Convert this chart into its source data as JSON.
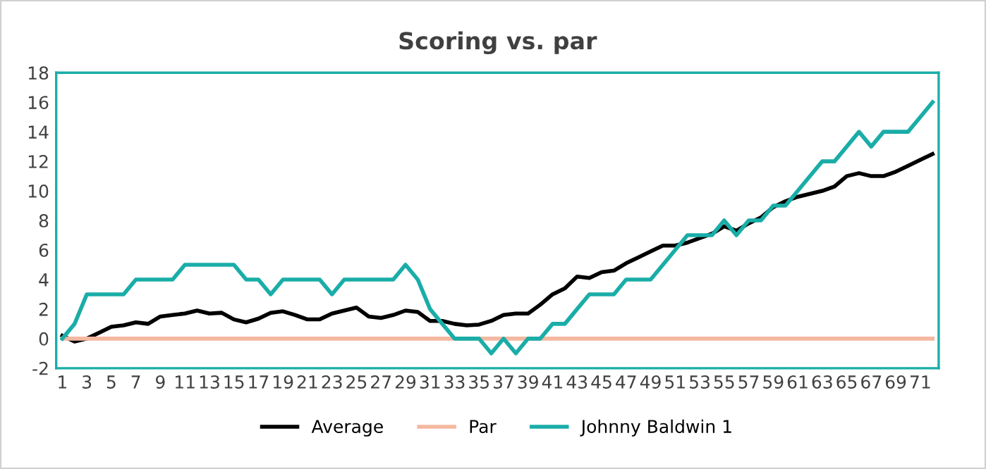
{
  "chart_data": {
    "type": "line",
    "title": "Scoring vs. par",
    "categories": [
      "1",
      null,
      "3",
      null,
      "5",
      null,
      "7",
      null,
      "9",
      null,
      "11",
      null,
      "13",
      null,
      "15",
      null,
      "17",
      null,
      "19",
      null,
      "21",
      null,
      "23",
      null,
      "25",
      null,
      "27",
      null,
      "29",
      null,
      "31",
      null,
      "33",
      null,
      "35",
      null,
      "37",
      null,
      "39",
      null,
      "41",
      null,
      "43",
      null,
      "45",
      null,
      "47",
      null,
      "49",
      null,
      "51",
      null,
      "53",
      null,
      "55",
      null,
      "57",
      null,
      "59",
      null,
      "61",
      null,
      "63",
      null,
      "65",
      null,
      "67",
      null,
      "69",
      null,
      "71",
      null
    ],
    "series": [
      {
        "name": "Average",
        "color": "#000000",
        "values": [
          0.2,
          -0.2,
          0,
          0.4,
          0.8,
          0.9,
          1.1,
          1.0,
          1.5,
          1.6,
          1.7,
          1.9,
          1.7,
          1.75,
          1.3,
          1.1,
          1.35,
          1.75,
          1.85,
          1.6,
          1.3,
          1.3,
          1.7,
          1.9,
          2.1,
          1.5,
          1.4,
          1.6,
          1.9,
          1.8,
          1.2,
          1.2,
          1.0,
          0.9,
          0.95,
          1.2,
          1.6,
          1.7,
          1.7,
          2.3,
          3.0,
          3.4,
          4.2,
          4.1,
          4.5,
          4.6,
          5.1,
          5.5,
          5.9,
          6.3,
          6.3,
          6.5,
          6.8,
          7.1,
          7.6,
          7.3,
          7.8,
          8.2,
          8.9,
          9.3,
          9.6,
          9.8,
          10.0,
          10.3,
          11.0,
          11.2,
          11.0,
          11.0,
          11.3,
          11.7,
          12.1,
          12.5
        ]
      },
      {
        "name": "Par",
        "color": "#f4b8a0",
        "values": [
          0,
          0,
          0,
          0,
          0,
          0,
          0,
          0,
          0,
          0,
          0,
          0,
          0,
          0,
          0,
          0,
          0,
          0,
          0,
          0,
          0,
          0,
          0,
          0,
          0,
          0,
          0,
          0,
          0,
          0,
          0,
          0,
          0,
          0,
          0,
          0,
          0,
          0,
          0,
          0,
          0,
          0,
          0,
          0,
          0,
          0,
          0,
          0,
          0,
          0,
          0,
          0,
          0,
          0,
          0,
          0,
          0,
          0,
          0,
          0,
          0,
          0,
          0,
          0,
          0,
          0,
          0,
          0,
          0,
          0,
          0,
          0
        ]
      },
      {
        "name": "Johnny Baldwin 1",
        "color": "#1aada8",
        "values": [
          0,
          1,
          3,
          3,
          3,
          3,
          4,
          4,
          4,
          4,
          5,
          5,
          5,
          5,
          5,
          4,
          4,
          3,
          4,
          4,
          4,
          4,
          3,
          4,
          4,
          4,
          4,
          4,
          5,
          4,
          2,
          1,
          0,
          0,
          0,
          -1,
          0,
          -1,
          0,
          0,
          1,
          1,
          2,
          3,
          3,
          3,
          4,
          4,
          4,
          5,
          6,
          7,
          7,
          7,
          8,
          7,
          8,
          8,
          9,
          9,
          10,
          11,
          12,
          12,
          13,
          14,
          13,
          14,
          14,
          14,
          15,
          16
        ]
      }
    ],
    "ylim": [
      -2,
      18
    ],
    "yticks": [
      -2,
      0,
      2,
      4,
      6,
      8,
      10,
      12,
      14,
      16,
      18
    ],
    "grid": false,
    "legend": "bottom",
    "marker": "none",
    "line_style": "solid"
  }
}
